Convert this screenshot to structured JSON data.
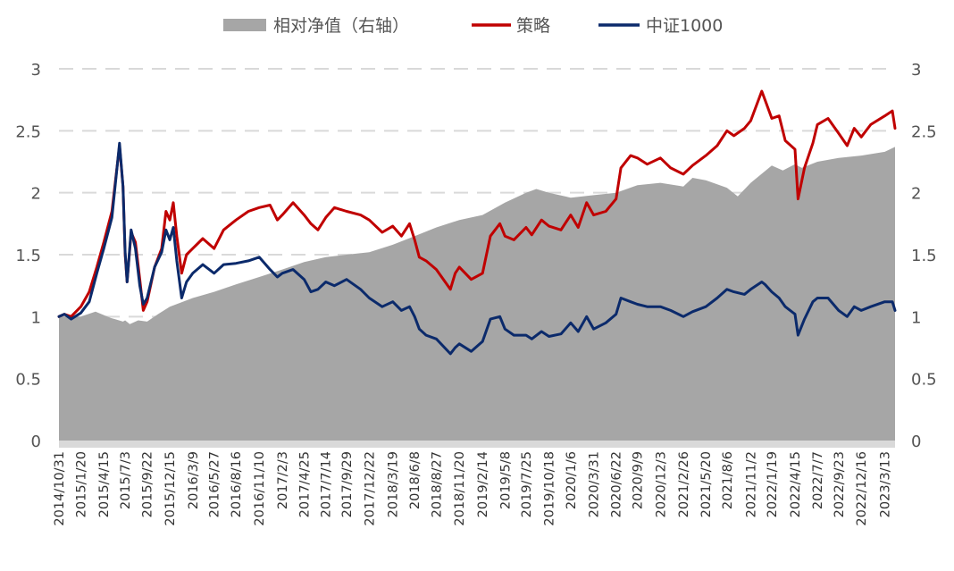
{
  "chart_data": {
    "type": "line",
    "title": "",
    "legend_position": "top",
    "grid": "horizontal-dashed",
    "colors": {
      "area": "#a6a6a6",
      "strategy": "#c00000",
      "index": "#0b2a6b",
      "grid": "#d9d9d9"
    },
    "series": [
      {
        "name": "相对净值（右轴）",
        "kind": "area",
        "axis": "right",
        "points": [
          [
            "2014/10/31",
            1.0
          ],
          [
            "2015/1/20",
            1.0
          ],
          [
            "2015/3/15",
            1.04
          ],
          [
            "2015/5/10",
            0.99
          ],
          [
            "2015/6/25",
            0.96
          ],
          [
            "2015/7/3",
            0.97
          ],
          [
            "2015/7/20",
            0.94
          ],
          [
            "2015/8/20",
            0.97
          ],
          [
            "2015/9/22",
            0.96
          ],
          [
            "2015/11/1",
            1.02
          ],
          [
            "2015/12/15",
            1.08
          ],
          [
            "2016/2/1",
            1.12
          ],
          [
            "2016/3/9",
            1.15
          ],
          [
            "2016/5/27",
            1.2
          ],
          [
            "2016/8/16",
            1.26
          ],
          [
            "2016/11/10",
            1.32
          ],
          [
            "2017/2/3",
            1.38
          ],
          [
            "2017/4/25",
            1.44
          ],
          [
            "2017/7/14",
            1.48
          ],
          [
            "2017/9/29",
            1.5
          ],
          [
            "2017/12/22",
            1.52
          ],
          [
            "2018/3/19",
            1.58
          ],
          [
            "2018/6/8",
            1.65
          ],
          [
            "2018/8/27",
            1.72
          ],
          [
            "2018/11/20",
            1.78
          ],
          [
            "2019/2/14",
            1.82
          ],
          [
            "2019/5/8",
            1.92
          ],
          [
            "2019/7/25",
            2.0
          ],
          [
            "2019/9/1",
            2.03
          ],
          [
            "2019/10/18",
            2.0
          ],
          [
            "2020/1/6",
            1.96
          ],
          [
            "2020/3/31",
            1.98
          ],
          [
            "2020/6/22",
            2.0
          ],
          [
            "2020/9/9",
            2.06
          ],
          [
            "2020/12/3",
            2.08
          ],
          [
            "2021/2/26",
            2.05
          ],
          [
            "2021/4/1",
            2.12
          ],
          [
            "2021/5/20",
            2.1
          ],
          [
            "2021/8/6",
            2.04
          ],
          [
            "2021/9/15",
            1.97
          ],
          [
            "2021/11/2",
            2.08
          ],
          [
            "2022/1/19",
            2.22
          ],
          [
            "2022/3/1",
            2.18
          ],
          [
            "2022/4/15",
            2.23
          ],
          [
            "2022/5/10",
            2.2
          ],
          [
            "2022/7/7",
            2.25
          ],
          [
            "2022/9/23",
            2.28
          ],
          [
            "2022/12/16",
            2.3
          ],
          [
            "2023/3/13",
            2.33
          ],
          [
            "2023/4/20",
            2.37
          ]
        ]
      },
      {
        "name": "策略",
        "kind": "line",
        "axis": "left",
        "points": [
          [
            "2014/10/31",
            1.0
          ],
          [
            "2014/11/20",
            1.02
          ],
          [
            "2014/12/15",
            1.0
          ],
          [
            "2015/1/20",
            1.08
          ],
          [
            "2015/2/20",
            1.2
          ],
          [
            "2015/3/20",
            1.4
          ],
          [
            "2015/4/15",
            1.6
          ],
          [
            "2015/5/15",
            1.85
          ],
          [
            "2015/6/5",
            2.25
          ],
          [
            "2015/6/12",
            2.38
          ],
          [
            "2015/6/25",
            2.05
          ],
          [
            "2015/7/3",
            1.5
          ],
          [
            "2015/7/10",
            1.28
          ],
          [
            "2015/7/25",
            1.68
          ],
          [
            "2015/8/10",
            1.6
          ],
          [
            "2015/8/26",
            1.3
          ],
          [
            "2015/9/8",
            1.05
          ],
          [
            "2015/9/22",
            1.12
          ],
          [
            "2015/10/20",
            1.4
          ],
          [
            "2015/11/15",
            1.55
          ],
          [
            "2015/12/1",
            1.85
          ],
          [
            "2015/12/15",
            1.78
          ],
          [
            "2015/12/28",
            1.92
          ],
          [
            "2016/1/10",
            1.65
          ],
          [
            "2016/1/28",
            1.35
          ],
          [
            "2016/2/15",
            1.5
          ],
          [
            "2016/3/9",
            1.55
          ],
          [
            "2016/4/15",
            1.63
          ],
          [
            "2016/5/27",
            1.55
          ],
          [
            "2016/7/1",
            1.7
          ],
          [
            "2016/8/16",
            1.78
          ],
          [
            "2016/10/1",
            1.85
          ],
          [
            "2016/11/10",
            1.88
          ],
          [
            "2016/12/20",
            1.9
          ],
          [
            "2017/1/16",
            1.78
          ],
          [
            "2017/2/3",
            1.82
          ],
          [
            "2017/3/15",
            1.92
          ],
          [
            "2017/4/25",
            1.82
          ],
          [
            "2017/5/20",
            1.75
          ],
          [
            "2017/6/15",
            1.7
          ],
          [
            "2017/7/14",
            1.8
          ],
          [
            "2017/8/15",
            1.88
          ],
          [
            "2017/9/29",
            1.85
          ],
          [
            "2017/11/20",
            1.82
          ],
          [
            "2017/12/22",
            1.78
          ],
          [
            "2018/2/8",
            1.68
          ],
          [
            "2018/3/19",
            1.73
          ],
          [
            "2018/4/20",
            1.65
          ],
          [
            "2018/5/20",
            1.75
          ],
          [
            "2018/6/8",
            1.62
          ],
          [
            "2018/6/25",
            1.48
          ],
          [
            "2018/7/20",
            1.45
          ],
          [
            "2018/8/27",
            1.38
          ],
          [
            "2018/10/18",
            1.22
          ],
          [
            "2018/11/5",
            1.35
          ],
          [
            "2018/11/20",
            1.4
          ],
          [
            "2019/1/3",
            1.3
          ],
          [
            "2019/2/14",
            1.35
          ],
          [
            "2019/3/15",
            1.65
          ],
          [
            "2019/4/19",
            1.75
          ],
          [
            "2019/5/8",
            1.65
          ],
          [
            "2019/6/10",
            1.62
          ],
          [
            "2019/7/25",
            1.72
          ],
          [
            "2019/8/15",
            1.66
          ],
          [
            "2019/9/20",
            1.78
          ],
          [
            "2019/10/18",
            1.73
          ],
          [
            "2019/12/1",
            1.7
          ],
          [
            "2020/1/6",
            1.82
          ],
          [
            "2020/2/3",
            1.72
          ],
          [
            "2020/3/5",
            1.92
          ],
          [
            "2020/3/31",
            1.82
          ],
          [
            "2020/5/15",
            1.85
          ],
          [
            "2020/6/22",
            1.95
          ],
          [
            "2020/7/10",
            2.2
          ],
          [
            "2020/8/15",
            2.3
          ],
          [
            "2020/9/9",
            2.28
          ],
          [
            "2020/10/15",
            2.23
          ],
          [
            "2020/12/3",
            2.28
          ],
          [
            "2021/1/10",
            2.2
          ],
          [
            "2021/2/26",
            2.15
          ],
          [
            "2021/4/1",
            2.22
          ],
          [
            "2021/5/20",
            2.3
          ],
          [
            "2021/7/1",
            2.38
          ],
          [
            "2021/8/6",
            2.5
          ],
          [
            "2021/9/1",
            2.46
          ],
          [
            "2021/10/10",
            2.52
          ],
          [
            "2021/11/2",
            2.58
          ],
          [
            "2021/12/13",
            2.82
          ],
          [
            "2021/12/25",
            2.75
          ],
          [
            "2022/1/19",
            2.6
          ],
          [
            "2022/2/15",
            2.62
          ],
          [
            "2022/3/10",
            2.42
          ],
          [
            "2022/4/15",
            2.35
          ],
          [
            "2022/4/26",
            1.95
          ],
          [
            "2022/5/20",
            2.2
          ],
          [
            "2022/6/20",
            2.4
          ],
          [
            "2022/7/7",
            2.55
          ],
          [
            "2022/8/15",
            2.6
          ],
          [
            "2022/9/23",
            2.48
          ],
          [
            "2022/10/25",
            2.38
          ],
          [
            "2022/11/20",
            2.52
          ],
          [
            "2022/12/16",
            2.45
          ],
          [
            "2023/1/20",
            2.55
          ],
          [
            "2023/3/13",
            2.62
          ],
          [
            "2023/4/10",
            2.66
          ],
          [
            "2023/4/20",
            2.52
          ]
        ]
      },
      {
        "name": "中证1000",
        "kind": "line",
        "axis": "left",
        "points": [
          [
            "2014/10/31",
            1.0
          ],
          [
            "2014/11/20",
            1.02
          ],
          [
            "2014/12/15",
            0.98
          ],
          [
            "2015/1/20",
            1.03
          ],
          [
            "2015/2/20",
            1.12
          ],
          [
            "2015/3/20",
            1.35
          ],
          [
            "2015/4/15",
            1.55
          ],
          [
            "2015/5/15",
            1.8
          ],
          [
            "2015/6/5",
            2.25
          ],
          [
            "2015/6/12",
            2.4
          ],
          [
            "2015/6/25",
            2.05
          ],
          [
            "2015/7/3",
            1.52
          ],
          [
            "2015/7/10",
            1.28
          ],
          [
            "2015/7/25",
            1.7
          ],
          [
            "2015/8/10",
            1.55
          ],
          [
            "2015/8/26",
            1.25
          ],
          [
            "2015/9/8",
            1.1
          ],
          [
            "2015/9/22",
            1.15
          ],
          [
            "2015/10/20",
            1.4
          ],
          [
            "2015/11/15",
            1.52
          ],
          [
            "2015/12/1",
            1.7
          ],
          [
            "2015/12/15",
            1.62
          ],
          [
            "2015/12/28",
            1.72
          ],
          [
            "2016/1/10",
            1.45
          ],
          [
            "2016/1/28",
            1.15
          ],
          [
            "2016/2/15",
            1.28
          ],
          [
            "2016/3/9",
            1.35
          ],
          [
            "2016/4/15",
            1.42
          ],
          [
            "2016/5/27",
            1.35
          ],
          [
            "2016/7/1",
            1.42
          ],
          [
            "2016/8/16",
            1.43
          ],
          [
            "2016/10/1",
            1.45
          ],
          [
            "2016/11/10",
            1.48
          ],
          [
            "2016/12/20",
            1.38
          ],
          [
            "2017/1/16",
            1.32
          ],
          [
            "2017/2/3",
            1.35
          ],
          [
            "2017/3/15",
            1.38
          ],
          [
            "2017/4/25",
            1.3
          ],
          [
            "2017/5/20",
            1.2
          ],
          [
            "2017/6/15",
            1.22
          ],
          [
            "2017/7/14",
            1.28
          ],
          [
            "2017/8/15",
            1.25
          ],
          [
            "2017/9/29",
            1.3
          ],
          [
            "2017/11/20",
            1.22
          ],
          [
            "2017/12/22",
            1.15
          ],
          [
            "2018/2/8",
            1.08
          ],
          [
            "2018/3/19",
            1.12
          ],
          [
            "2018/4/20",
            1.05
          ],
          [
            "2018/5/20",
            1.08
          ],
          [
            "2018/6/8",
            1.0
          ],
          [
            "2018/6/25",
            0.9
          ],
          [
            "2018/7/20",
            0.85
          ],
          [
            "2018/8/27",
            0.82
          ],
          [
            "2018/10/18",
            0.7
          ],
          [
            "2018/11/5",
            0.75
          ],
          [
            "2018/11/20",
            0.78
          ],
          [
            "2019/1/3",
            0.72
          ],
          [
            "2019/2/14",
            0.8
          ],
          [
            "2019/3/15",
            0.98
          ],
          [
            "2019/4/19",
            1.0
          ],
          [
            "2019/5/8",
            0.9
          ],
          [
            "2019/6/10",
            0.85
          ],
          [
            "2019/7/25",
            0.85
          ],
          [
            "2019/8/15",
            0.82
          ],
          [
            "2019/9/20",
            0.88
          ],
          [
            "2019/10/18",
            0.84
          ],
          [
            "2019/12/1",
            0.86
          ],
          [
            "2020/1/6",
            0.95
          ],
          [
            "2020/2/3",
            0.88
          ],
          [
            "2020/3/5",
            1.0
          ],
          [
            "2020/3/31",
            0.9
          ],
          [
            "2020/5/15",
            0.95
          ],
          [
            "2020/6/22",
            1.02
          ],
          [
            "2020/7/10",
            1.15
          ],
          [
            "2020/8/15",
            1.12
          ],
          [
            "2020/9/9",
            1.1
          ],
          [
            "2020/10/15",
            1.08
          ],
          [
            "2020/12/3",
            1.08
          ],
          [
            "2021/1/10",
            1.05
          ],
          [
            "2021/2/26",
            1.0
          ],
          [
            "2021/4/1",
            1.04
          ],
          [
            "2021/5/20",
            1.08
          ],
          [
            "2021/7/1",
            1.15
          ],
          [
            "2021/8/6",
            1.22
          ],
          [
            "2021/9/1",
            1.2
          ],
          [
            "2021/10/10",
            1.18
          ],
          [
            "2021/11/2",
            1.22
          ],
          [
            "2021/12/13",
            1.28
          ],
          [
            "2021/12/25",
            1.26
          ],
          [
            "2022/1/19",
            1.2
          ],
          [
            "2022/2/15",
            1.15
          ],
          [
            "2022/3/10",
            1.08
          ],
          [
            "2022/4/15",
            1.02
          ],
          [
            "2022/4/26",
            0.85
          ],
          [
            "2022/5/20",
            0.98
          ],
          [
            "2022/6/20",
            1.12
          ],
          [
            "2022/7/7",
            1.15
          ],
          [
            "2022/8/15",
            1.15
          ],
          [
            "2022/9/23",
            1.05
          ],
          [
            "2022/10/25",
            1.0
          ],
          [
            "2022/11/20",
            1.08
          ],
          [
            "2022/12/16",
            1.05
          ],
          [
            "2023/1/20",
            1.08
          ],
          [
            "2023/3/13",
            1.12
          ],
          [
            "2023/4/10",
            1.12
          ],
          [
            "2023/4/20",
            1.05
          ]
        ]
      }
    ],
    "y_left": {
      "min": 0,
      "max": 3,
      "ticks": [
        "0",
        "0.5",
        "1",
        "1.5",
        "2",
        "2.5",
        "3"
      ]
    },
    "y_right": {
      "min": 0,
      "max": 3,
      "ticks": [
        "0",
        "0.5",
        "1",
        "1.5",
        "2",
        "2.5",
        "3"
      ]
    },
    "x_range": [
      "2014/10/31",
      "2023/4/20"
    ],
    "x_tick_labels": [
      "2014/10/31",
      "2015/1/20",
      "2015/4/15",
      "2015/7/3",
      "2015/9/22",
      "2015/12/15",
      "2016/3/9",
      "2016/5/27",
      "2016/8/16",
      "2016/11/10",
      "2017/2/3",
      "2017/4/25",
      "2017/7/14",
      "2017/9/29",
      "2017/12/22",
      "2018/3/19",
      "2018/6/8",
      "2018/8/27",
      "2018/11/20",
      "2019/2/14",
      "2019/5/8",
      "2019/7/25",
      "2019/10/18",
      "2020/1/6",
      "2020/3/31",
      "2020/6/22",
      "2020/9/9",
      "2020/12/3",
      "2021/2/26",
      "2021/5/20",
      "2021/8/6",
      "2021/11/2",
      "2022/1/19",
      "2022/4/15",
      "2022/7/7",
      "2022/9/23",
      "2022/12/16",
      "2023/3/13"
    ]
  }
}
